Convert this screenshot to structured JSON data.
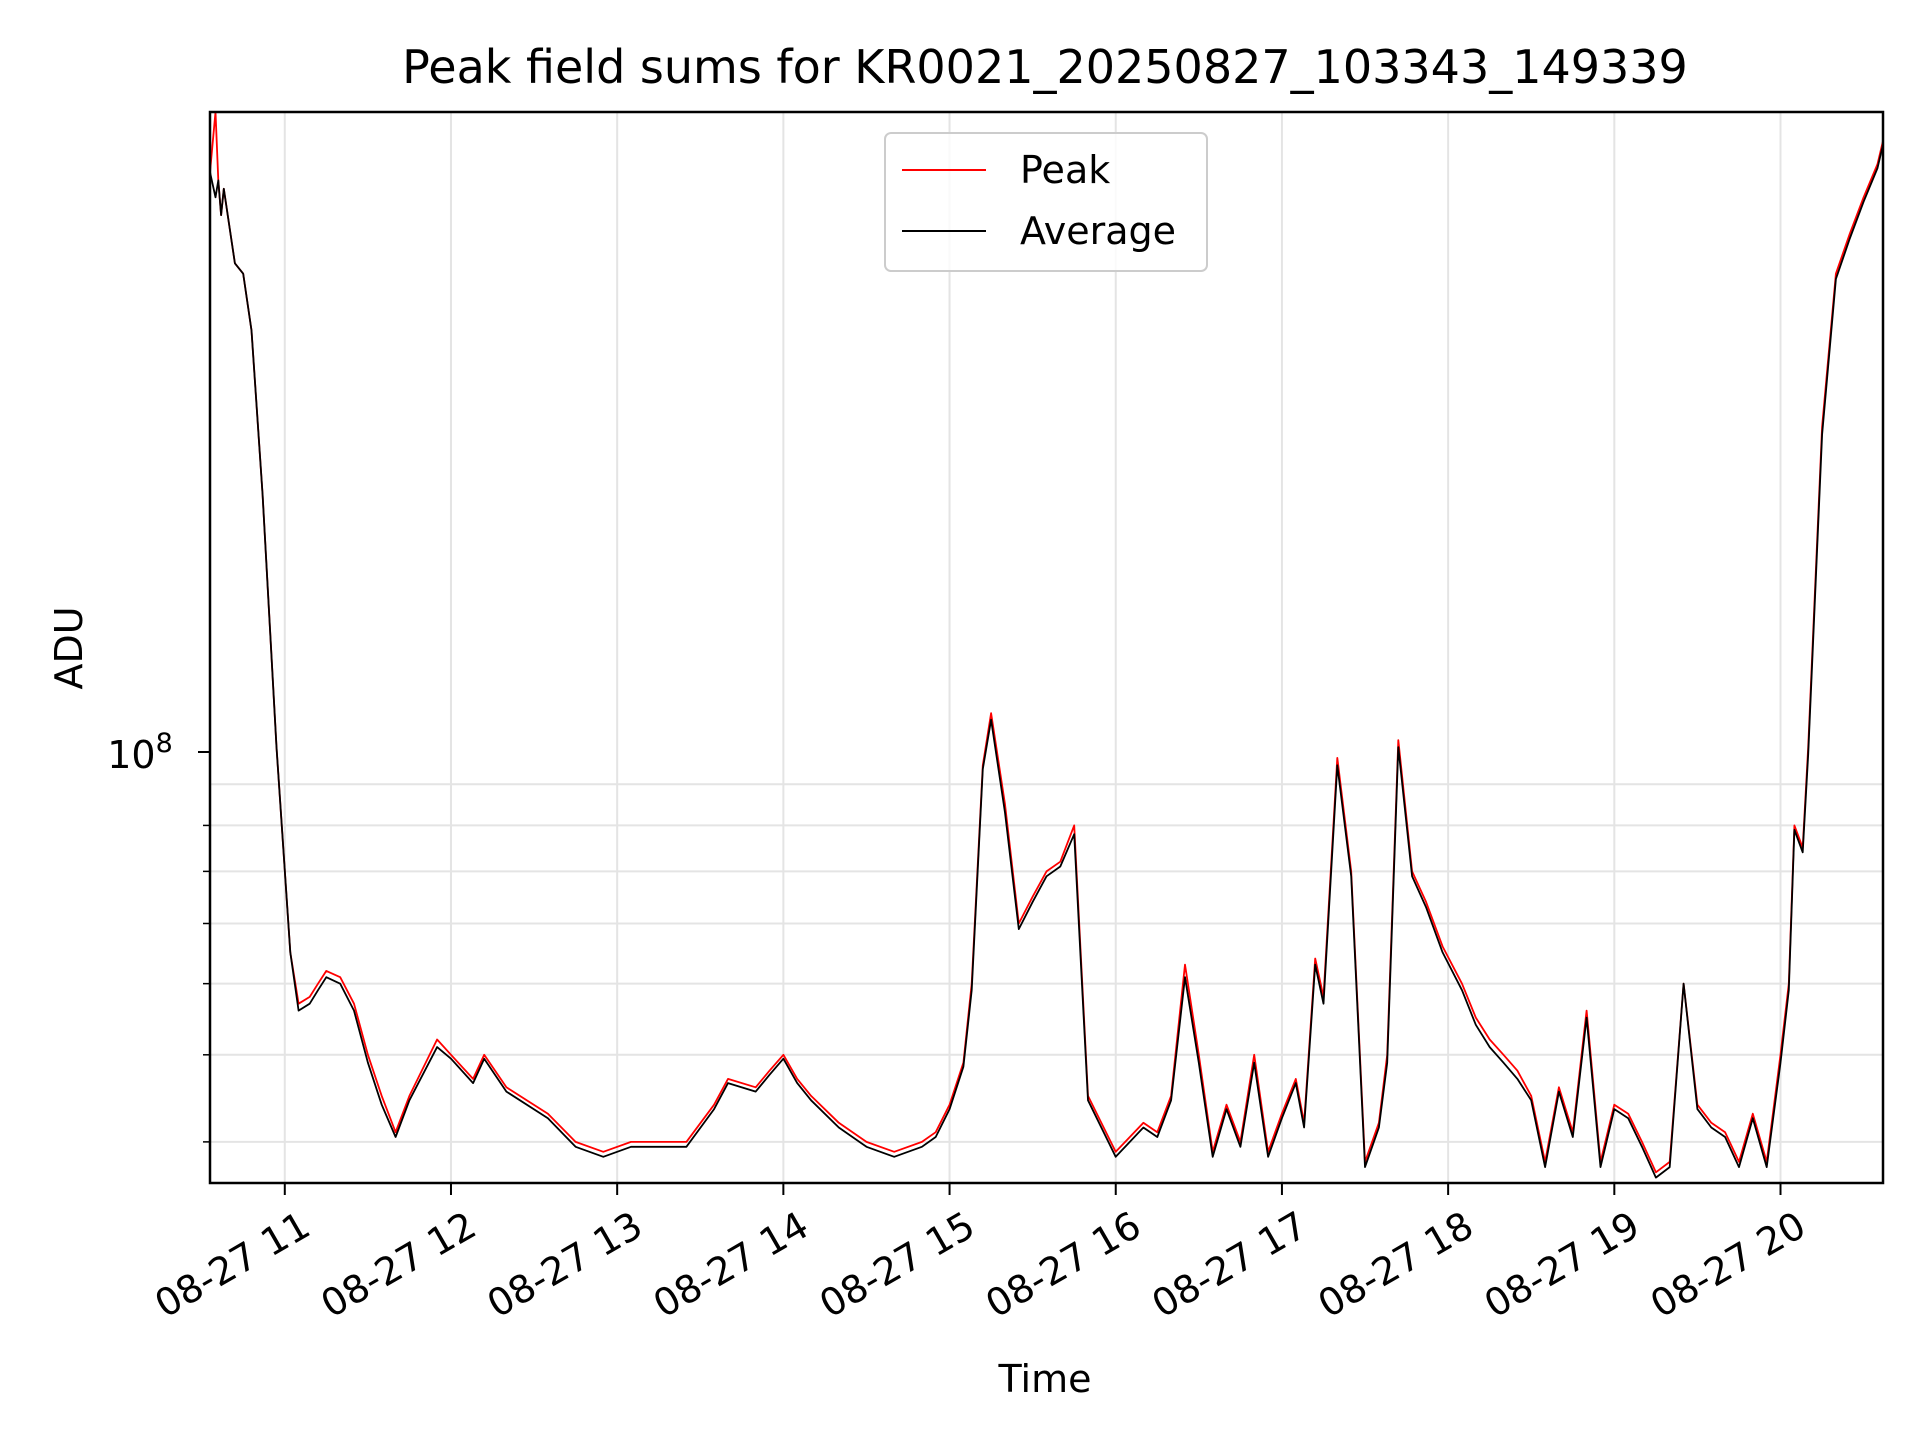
{
  "chart_data": {
    "type": "line",
    "title": "Peak field sums for KR0021_20250827_103343_149339",
    "xlabel": "Time",
    "ylabel": "ADU",
    "y_scale": "log",
    "grid": true,
    "legend_position": "top-center",
    "x_tick_labels": [
      "08-27 11",
      "08-27 12",
      "08-27 13",
      "08-27 14",
      "08-27 15",
      "08-27 16",
      "08-27 17",
      "08-27 18",
      "08-27 19",
      "08-27 20"
    ],
    "x_ticks": [
      "2025-08-27 11:00",
      "2025-08-27 12:00",
      "2025-08-27 13:00",
      "2025-08-27 14:00",
      "2025-08-27 15:00",
      "2025-08-27 16:00",
      "2025-08-27 17:00",
      "2025-08-27 18:00",
      "2025-08-27 19:00",
      "2025-08-27 20:00"
    ],
    "xlim": [
      "2025-08-27 10:33",
      "2025-08-27 20:37"
    ],
    "y_major_tick_label": "10^8",
    "y_major_ticks": [
      100000000
    ],
    "y_minor_ticks": [
      40000000,
      50000000,
      60000000,
      70000000,
      80000000,
      90000000
    ],
    "ylim": [
      36000000,
      560000000
    ],
    "series": [
      {
        "name": "Peak",
        "color": "#ff0000",
        "x": [
          "2025-08-27 10:33",
          "2025-08-27 10:35",
          "2025-08-27 10:36",
          "2025-08-27 10:37",
          "2025-08-27 10:38",
          "2025-08-27 10:42",
          "2025-08-27 10:45",
          "2025-08-27 10:48",
          "2025-08-27 10:52",
          "2025-08-27 10:57",
          "2025-08-27 11:02",
          "2025-08-27 11:05",
          "2025-08-27 11:09",
          "2025-08-27 11:12",
          "2025-08-27 11:15",
          "2025-08-27 11:20",
          "2025-08-27 11:25",
          "2025-08-27 11:30",
          "2025-08-27 11:35",
          "2025-08-27 11:40",
          "2025-08-27 11:45",
          "2025-08-27 11:55",
          "2025-08-27 12:00",
          "2025-08-27 12:08",
          "2025-08-27 12:12",
          "2025-08-27 12:20",
          "2025-08-27 12:35",
          "2025-08-27 12:45",
          "2025-08-27 12:55",
          "2025-08-27 13:05",
          "2025-08-27 13:15",
          "2025-08-27 13:25",
          "2025-08-27 13:35",
          "2025-08-27 13:40",
          "2025-08-27 13:50",
          "2025-08-27 13:55",
          "2025-08-27 14:00",
          "2025-08-27 14:05",
          "2025-08-27 14:10",
          "2025-08-27 14:20",
          "2025-08-27 14:30",
          "2025-08-27 14:40",
          "2025-08-27 14:50",
          "2025-08-27 14:55",
          "2025-08-27 15:00",
          "2025-08-27 15:05",
          "2025-08-27 15:08",
          "2025-08-27 15:12",
          "2025-08-27 15:15",
          "2025-08-27 15:20",
          "2025-08-27 15:25",
          "2025-08-27 15:30",
          "2025-08-27 15:35",
          "2025-08-27 15:40",
          "2025-08-27 15:45",
          "2025-08-27 15:50",
          "2025-08-27 16:00",
          "2025-08-27 16:10",
          "2025-08-27 16:15",
          "2025-08-27 16:20",
          "2025-08-27 16:25",
          "2025-08-27 16:30",
          "2025-08-27 16:35",
          "2025-08-27 16:40",
          "2025-08-27 16:45",
          "2025-08-27 16:50",
          "2025-08-27 16:55",
          "2025-08-27 17:00",
          "2025-08-27 17:05",
          "2025-08-27 17:08",
          "2025-08-27 17:12",
          "2025-08-27 17:15",
          "2025-08-27 17:20",
          "2025-08-27 17:25",
          "2025-08-27 17:30",
          "2025-08-27 17:35",
          "2025-08-27 17:38",
          "2025-08-27 17:42",
          "2025-08-27 17:47",
          "2025-08-27 17:52",
          "2025-08-27 17:58",
          "2025-08-27 18:05",
          "2025-08-27 18:10",
          "2025-08-27 18:15",
          "2025-08-27 18:20",
          "2025-08-27 18:25",
          "2025-08-27 18:30",
          "2025-08-27 18:35",
          "2025-08-27 18:40",
          "2025-08-27 18:45",
          "2025-08-27 18:50",
          "2025-08-27 18:55",
          "2025-08-27 19:00",
          "2025-08-27 19:05",
          "2025-08-27 19:10",
          "2025-08-27 19:15",
          "2025-08-27 19:20",
          "2025-08-27 19:25",
          "2025-08-27 19:30",
          "2025-08-27 19:35",
          "2025-08-27 19:40",
          "2025-08-27 19:45",
          "2025-08-27 19:50",
          "2025-08-27 19:55",
          "2025-08-27 20:00",
          "2025-08-27 20:03",
          "2025-08-27 20:05",
          "2025-08-27 20:08",
          "2025-08-27 20:10",
          "2025-08-27 20:15",
          "2025-08-27 20:20",
          "2025-08-27 20:25",
          "2025-08-27 20:30",
          "2025-08-27 20:35",
          "2025-08-27 20:37"
        ],
        "y": [
          480000000,
          560000000,
          470000000,
          430000000,
          460000000,
          380000000,
          370000000,
          320000000,
          210000000,
          110000000,
          65000000,
          57000000,
          58000000,
          60000000,
          62000000,
          61000000,
          57000000,
          50000000,
          45000000,
          41000000,
          45000000,
          52000000,
          50000000,
          47000000,
          50000000,
          46000000,
          43000000,
          40000000,
          39000000,
          40000000,
          40000000,
          40000000,
          44000000,
          47000000,
          46000000,
          48000000,
          50000000,
          47000000,
          45000000,
          42000000,
          40000000,
          39000000,
          40000000,
          41000000,
          44000000,
          49000000,
          60000000,
          105000000,
          120000000,
          95000000,
          70000000,
          75000000,
          80000000,
          82000000,
          90000000,
          45000000,
          39000000,
          42000000,
          41000000,
          45000000,
          63000000,
          50000000,
          39000000,
          44000000,
          40000000,
          50000000,
          39000000,
          43000000,
          47000000,
          42000000,
          64000000,
          58000000,
          107000000,
          80000000,
          38000000,
          42000000,
          50000000,
          112000000,
          80000000,
          74000000,
          66000000,
          60000000,
          55000000,
          52000000,
          50000000,
          48000000,
          45000000,
          38000000,
          46000000,
          41000000,
          56000000,
          38000000,
          44000000,
          43000000,
          40000000,
          37000000,
          38000000,
          60000000,
          44000000,
          42000000,
          41000000,
          38000000,
          43000000,
          38000000,
          50000000,
          60000000,
          90000000,
          85000000,
          110000000,
          250000000,
          370000000,
          410000000,
          450000000,
          490000000,
          520000000
        ]
      },
      {
        "name": "Average",
        "color": "#000000",
        "x": [
          "2025-08-27 10:33",
          "2025-08-27 10:35",
          "2025-08-27 10:36",
          "2025-08-27 10:37",
          "2025-08-27 10:38",
          "2025-08-27 10:42",
          "2025-08-27 10:45",
          "2025-08-27 10:48",
          "2025-08-27 10:52",
          "2025-08-27 10:57",
          "2025-08-27 11:02",
          "2025-08-27 11:05",
          "2025-08-27 11:09",
          "2025-08-27 11:12",
          "2025-08-27 11:15",
          "2025-08-27 11:20",
          "2025-08-27 11:25",
          "2025-08-27 11:30",
          "2025-08-27 11:35",
          "2025-08-27 11:40",
          "2025-08-27 11:45",
          "2025-08-27 11:55",
          "2025-08-27 12:00",
          "2025-08-27 12:08",
          "2025-08-27 12:12",
          "2025-08-27 12:20",
          "2025-08-27 12:35",
          "2025-08-27 12:45",
          "2025-08-27 12:55",
          "2025-08-27 13:05",
          "2025-08-27 13:15",
          "2025-08-27 13:25",
          "2025-08-27 13:35",
          "2025-08-27 13:40",
          "2025-08-27 13:50",
          "2025-08-27 13:55",
          "2025-08-27 14:00",
          "2025-08-27 14:05",
          "2025-08-27 14:10",
          "2025-08-27 14:20",
          "2025-08-27 14:30",
          "2025-08-27 14:40",
          "2025-08-27 14:50",
          "2025-08-27 14:55",
          "2025-08-27 15:00",
          "2025-08-27 15:05",
          "2025-08-27 15:08",
          "2025-08-27 15:12",
          "2025-08-27 15:15",
          "2025-08-27 15:20",
          "2025-08-27 15:25",
          "2025-08-27 15:30",
          "2025-08-27 15:35",
          "2025-08-27 15:40",
          "2025-08-27 15:45",
          "2025-08-27 15:50",
          "2025-08-27 16:00",
          "2025-08-27 16:10",
          "2025-08-27 16:15",
          "2025-08-27 16:20",
          "2025-08-27 16:25",
          "2025-08-27 16:30",
          "2025-08-27 16:35",
          "2025-08-27 16:40",
          "2025-08-27 16:45",
          "2025-08-27 16:50",
          "2025-08-27 16:55",
          "2025-08-27 17:00",
          "2025-08-27 17:05",
          "2025-08-27 17:08",
          "2025-08-27 17:12",
          "2025-08-27 17:15",
          "2025-08-27 17:20",
          "2025-08-27 17:25",
          "2025-08-27 17:30",
          "2025-08-27 17:35",
          "2025-08-27 17:38",
          "2025-08-27 17:42",
          "2025-08-27 17:47",
          "2025-08-27 17:52",
          "2025-08-27 17:58",
          "2025-08-27 18:05",
          "2025-08-27 18:10",
          "2025-08-27 18:15",
          "2025-08-27 18:20",
          "2025-08-27 18:25",
          "2025-08-27 18:30",
          "2025-08-27 18:35",
          "2025-08-27 18:40",
          "2025-08-27 18:45",
          "2025-08-27 18:50",
          "2025-08-27 18:55",
          "2025-08-27 19:00",
          "2025-08-27 19:05",
          "2025-08-27 19:10",
          "2025-08-27 19:15",
          "2025-08-27 19:20",
          "2025-08-27 19:25",
          "2025-08-27 19:30",
          "2025-08-27 19:35",
          "2025-08-27 19:40",
          "2025-08-27 19:45",
          "2025-08-27 19:50",
          "2025-08-27 19:55",
          "2025-08-27 20:00",
          "2025-08-27 20:03",
          "2025-08-27 20:05",
          "2025-08-27 20:08",
          "2025-08-27 20:10",
          "2025-08-27 20:15",
          "2025-08-27 20:20",
          "2025-08-27 20:25",
          "2025-08-27 20:30",
          "2025-08-27 20:35",
          "2025-08-27 20:37"
        ],
        "y": [
          480000000,
          450000000,
          470000000,
          430000000,
          460000000,
          380000000,
          370000000,
          320000000,
          210000000,
          110000000,
          65000000,
          56000000,
          57000000,
          59000000,
          61000000,
          60000000,
          56000000,
          49000000,
          44000000,
          40500000,
          44500000,
          51000000,
          49500000,
          46500000,
          49500000,
          45500000,
          42500000,
          39500000,
          38500000,
          39500000,
          39500000,
          39500000,
          43500000,
          46500000,
          45500000,
          47500000,
          49500000,
          46500000,
          44500000,
          41500000,
          39500000,
          38500000,
          39500000,
          40500000,
          43500000,
          48500000,
          59000000,
          104000000,
          118000000,
          93000000,
          69000000,
          74000000,
          79000000,
          81000000,
          88000000,
          44500000,
          38500000,
          41500000,
          40500000,
          44500000,
          61000000,
          49000000,
          38500000,
          43500000,
          39500000,
          49000000,
          38500000,
          42500000,
          46500000,
          41500000,
          63000000,
          57000000,
          105000000,
          79000000,
          37500000,
          41500000,
          49000000,
          110000000,
          79000000,
          73000000,
          65000000,
          59000000,
          54000000,
          51000000,
          49000000,
          47000000,
          44500000,
          37500000,
          45500000,
          40500000,
          55000000,
          37500000,
          43500000,
          42500000,
          39500000,
          36500000,
          37500000,
          60000000,
          43500000,
          41500000,
          40500000,
          37500000,
          42500000,
          37500000,
          49000000,
          59000000,
          89000000,
          84000000,
          108000000,
          245000000,
          365000000,
          405000000,
          445000000,
          485000000,
          515000000
        ]
      }
    ]
  }
}
